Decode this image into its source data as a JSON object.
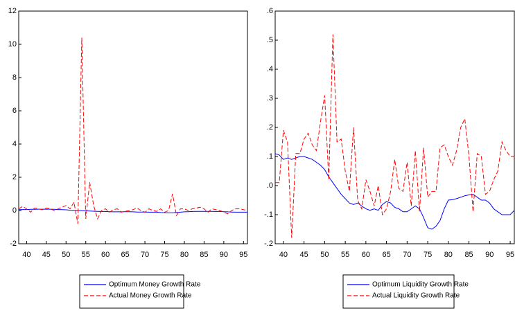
{
  "chart_data": [
    {
      "type": "line",
      "x": [
        38,
        39,
        40,
        41,
        42,
        43,
        44,
        45,
        46,
        47,
        48,
        49,
        50,
        51,
        52,
        53,
        54,
        55,
        56,
        57,
        58,
        59,
        60,
        61,
        62,
        63,
        64,
        65,
        66,
        67,
        68,
        69,
        70,
        71,
        72,
        73,
        74,
        75,
        76,
        77,
        78,
        79,
        80,
        81,
        82,
        83,
        84,
        85,
        86,
        87,
        88,
        89,
        90,
        91,
        92,
        93,
        94,
        95,
        96
      ],
      "xlim": [
        38,
        96
      ],
      "xticks": [
        40,
        45,
        50,
        55,
        60,
        65,
        70,
        75,
        80,
        85,
        90,
        95
      ],
      "ylim": [
        -2,
        12
      ],
      "yticks": [
        -2,
        0,
        2,
        4,
        6,
        8,
        10,
        12
      ],
      "series": [
        {
          "name": "Optimum Money Growth Rate",
          "color": "#0000ff",
          "dashed": false,
          "values": [
            0.05,
            0.06,
            0.06,
            0.07,
            0.07,
            0.08,
            0.08,
            0.08,
            0.08,
            0.07,
            0.06,
            0.05,
            0.04,
            0.02,
            0.01,
            0.0,
            -0.01,
            -0.02,
            -0.03,
            -0.04,
            -0.05,
            -0.06,
            -0.06,
            -0.07,
            -0.08,
            -0.08,
            -0.08,
            -0.07,
            -0.07,
            -0.08,
            -0.09,
            -0.09,
            -0.09,
            -0.1,
            -0.1,
            -0.1,
            -0.12,
            -0.13,
            -0.14,
            -0.14,
            -0.12,
            -0.1,
            -0.08,
            -0.07,
            -0.06,
            -0.05,
            -0.05,
            -0.05,
            -0.05,
            -0.05,
            -0.06,
            -0.06,
            -0.07,
            -0.08,
            -0.09,
            -0.1,
            -0.1,
            -0.1,
            -0.1
          ]
        },
        {
          "name": "Actual Money Growth Rate",
          "color": "#ff0000",
          "dashed": true,
          "values": [
            0.1,
            0.25,
            0.1,
            -0.1,
            0.15,
            0.1,
            0.05,
            0.15,
            0.1,
            0.0,
            0.1,
            0.2,
            0.3,
            0.1,
            0.5,
            -0.8,
            10.4,
            -0.5,
            1.7,
            0.3,
            -0.5,
            0.0,
            0.1,
            -0.1,
            0.05,
            0.1,
            -0.1,
            -0.05,
            0.0,
            0.05,
            0.15,
            0.0,
            -0.1,
            0.1,
            0.0,
            -0.05,
            0.1,
            -0.1,
            0.0,
            1.0,
            -0.3,
            0.1,
            0.1,
            0.0,
            0.1,
            0.15,
            0.2,
            0.1,
            -0.1,
            0.1,
            0.05,
            0.0,
            -0.1,
            -0.2,
            0.0,
            0.1,
            0.1,
            0.05,
            0.0
          ]
        }
      ]
    },
    {
      "type": "line",
      "x": [
        38,
        39,
        40,
        41,
        42,
        43,
        44,
        45,
        46,
        47,
        48,
        49,
        50,
        51,
        52,
        53,
        54,
        55,
        56,
        57,
        58,
        59,
        60,
        61,
        62,
        63,
        64,
        65,
        66,
        67,
        68,
        69,
        70,
        71,
        72,
        73,
        74,
        75,
        76,
        77,
        78,
        79,
        80,
        81,
        82,
        83,
        84,
        85,
        86,
        87,
        88,
        89,
        90,
        91,
        92,
        93,
        94,
        95,
        96
      ],
      "xlim": [
        38,
        96
      ],
      "xticks": [
        40,
        45,
        50,
        55,
        60,
        65,
        70,
        75,
        80,
        85,
        90,
        95
      ],
      "ylim": [
        -0.2,
        0.6
      ],
      "yticks": [
        {
          "value": -0.2,
          "label": "-.2"
        },
        {
          "value": -0.1,
          "label": "-.1"
        },
        {
          "value": 0,
          "label": ".0"
        },
        {
          "value": 0.1,
          "label": ".1"
        },
        {
          "value": 0.2,
          "label": ".2"
        },
        {
          "value": 0.3,
          "label": ".3"
        },
        {
          "value": 0.4,
          "label": ".4"
        },
        {
          "value": 0.5,
          "label": ".5"
        },
        {
          "value": 0.6,
          "label": ".6"
        }
      ],
      "series": [
        {
          "name": "Optimum Liquidity Growth Rate",
          "color": "#0000ff",
          "dashed": false,
          "values": [
            0.11,
            0.105,
            0.09,
            0.095,
            0.09,
            0.095,
            0.1,
            0.1,
            0.095,
            0.09,
            0.08,
            0.07,
            0.055,
            0.03,
            0.01,
            -0.01,
            -0.03,
            -0.045,
            -0.06,
            -0.065,
            -0.06,
            -0.07,
            -0.08,
            -0.085,
            -0.08,
            -0.085,
            -0.065,
            -0.055,
            -0.06,
            -0.075,
            -0.08,
            -0.09,
            -0.09,
            -0.08,
            -0.07,
            -0.08,
            -0.11,
            -0.145,
            -0.15,
            -0.14,
            -0.12,
            -0.08,
            -0.05,
            -0.048,
            -0.045,
            -0.04,
            -0.035,
            -0.032,
            -0.03,
            -0.04,
            -0.05,
            -0.05,
            -0.06,
            -0.08,
            -0.09,
            -0.1,
            -0.1,
            -0.1,
            -0.085
          ]
        },
        {
          "name": "Actual Liquidity Growth Rate",
          "color": "#ff0000",
          "dashed": true,
          "values": [
            0.01,
            0.01,
            0.19,
            0.15,
            -0.18,
            0.11,
            0.11,
            0.16,
            0.18,
            0.14,
            0.12,
            0.22,
            0.31,
            0.02,
            0.52,
            0.15,
            0.16,
            0.05,
            -0.02,
            0.2,
            -0.05,
            -0.08,
            0.02,
            -0.02,
            -0.07,
            0.0,
            -0.1,
            -0.08,
            -0.02,
            0.09,
            -0.01,
            -0.02,
            0.08,
            -0.07,
            0.12,
            -0.09,
            0.13,
            -0.04,
            -0.02,
            -0.02,
            0.13,
            0.14,
            0.1,
            0.07,
            0.12,
            0.2,
            0.23,
            0.1,
            -0.09,
            0.11,
            0.1,
            -0.03,
            -0.02,
            0.02,
            0.05,
            0.15,
            0.12,
            0.1,
            0.1
          ]
        }
      ]
    }
  ]
}
